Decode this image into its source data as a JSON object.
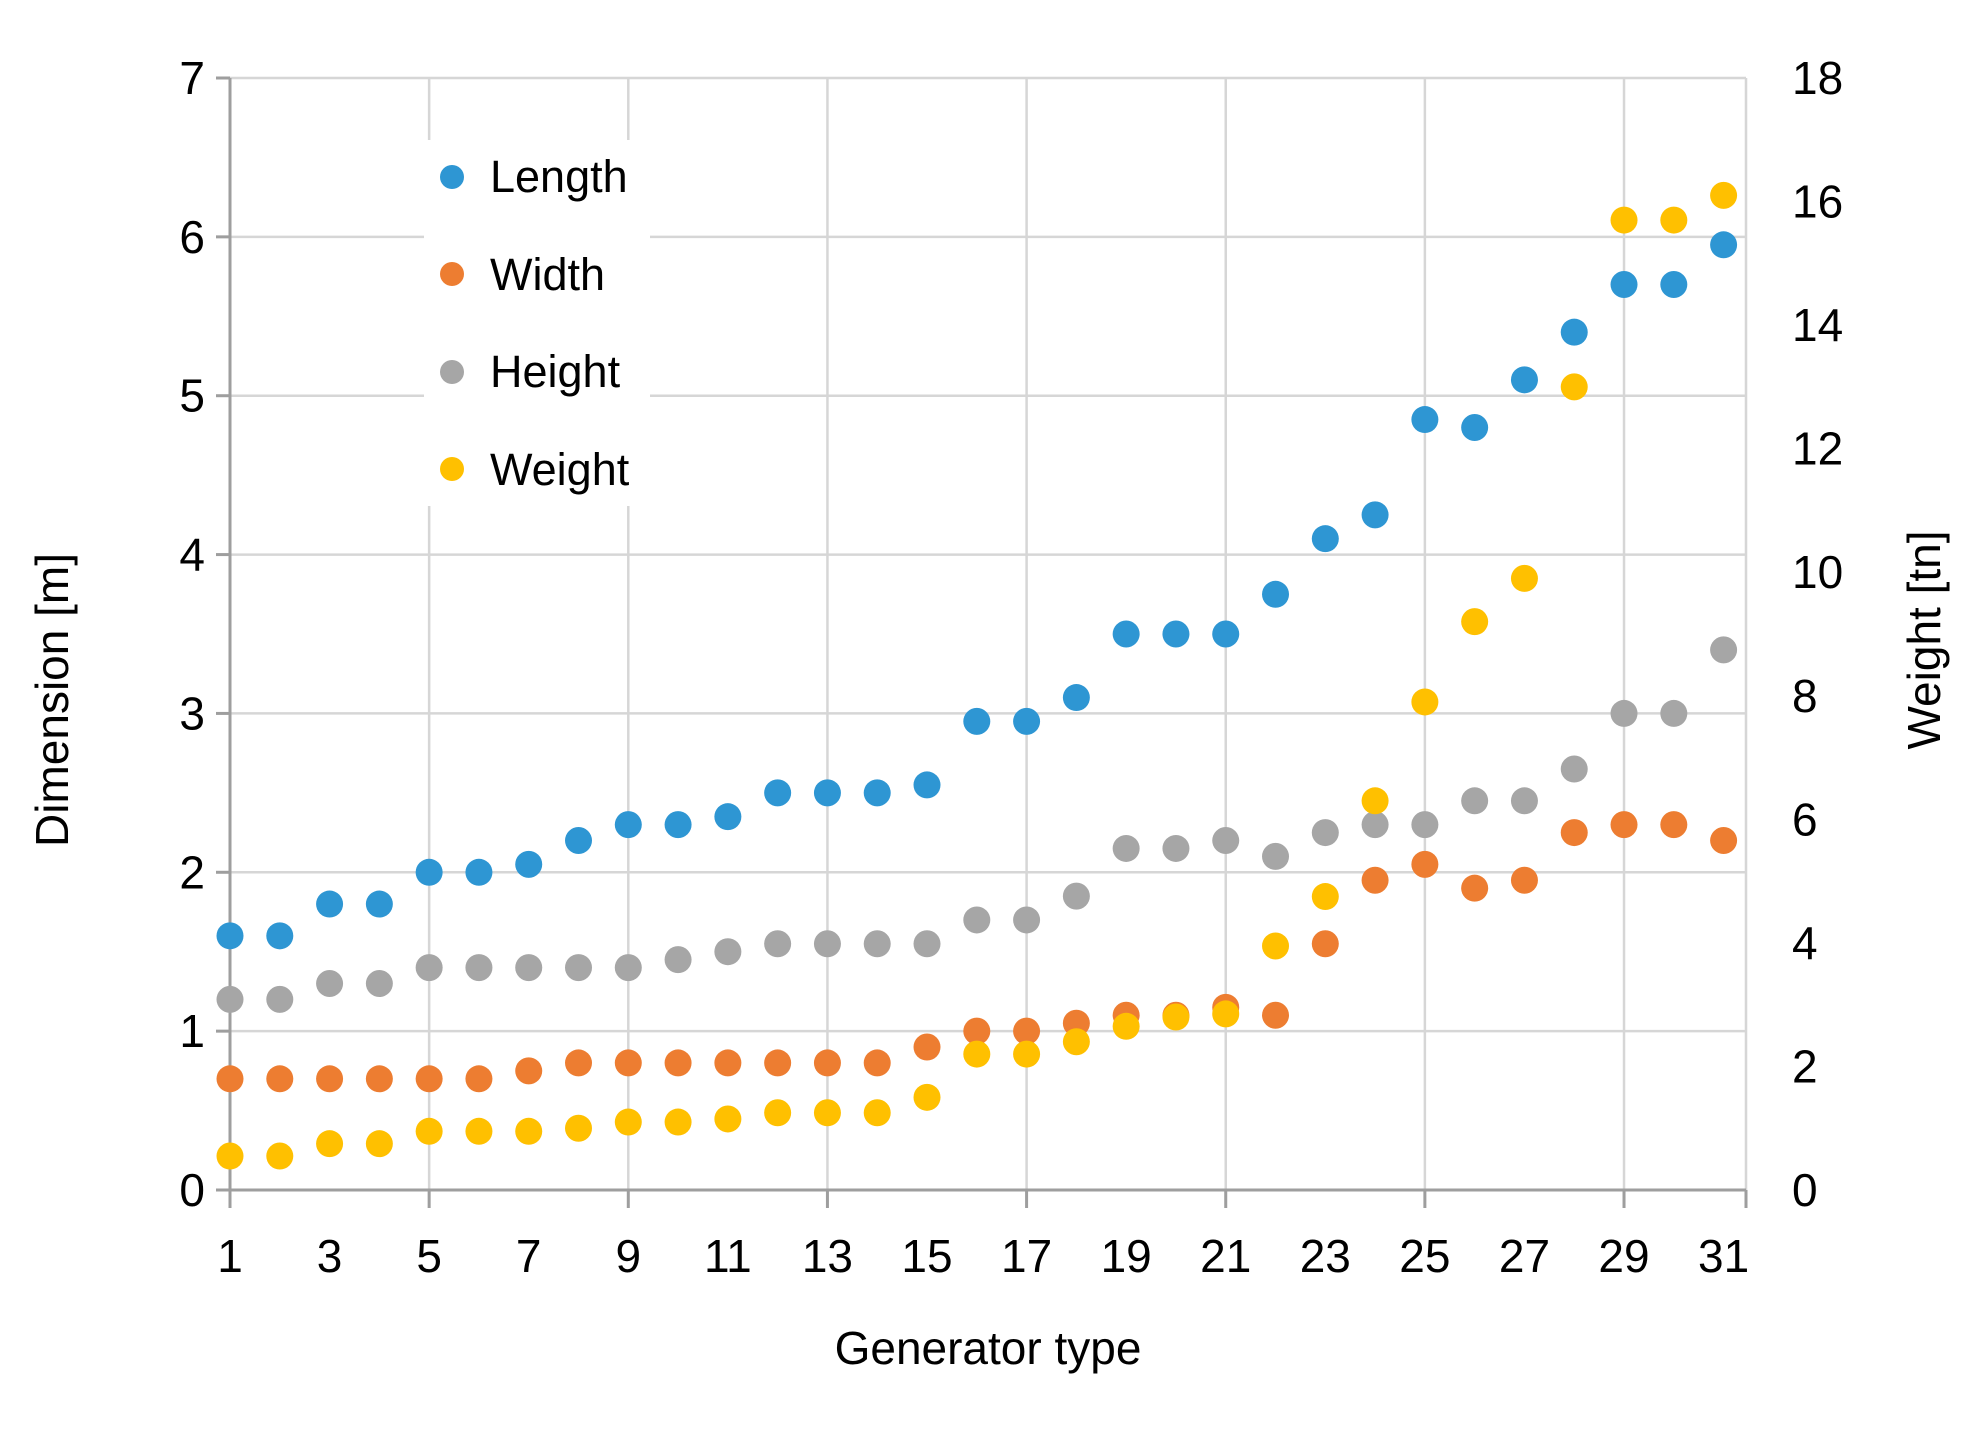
{
  "chart_data": {
    "type": "scatter",
    "title": "",
    "xlabel": "Generator type",
    "ylabel_left": "Dimension [m]",
    "ylabel_right": "Weight [tn]",
    "grid": true,
    "legend_position": "inside-top-left",
    "x": [
      1,
      2,
      3,
      4,
      5,
      6,
      7,
      8,
      9,
      10,
      11,
      12,
      13,
      14,
      15,
      16,
      17,
      18,
      19,
      20,
      21,
      22,
      23,
      24,
      25,
      26,
      27,
      28,
      29,
      30,
      31
    ],
    "x_axis": {
      "tick_labels": [
        1,
        3,
        5,
        7,
        9,
        11,
        13,
        15,
        17,
        19,
        21,
        23,
        25,
        27,
        29,
        31
      ],
      "gridline_step": 4,
      "min": 1,
      "max": 31.45
    },
    "y_axis_left": {
      "min": 0,
      "max": 7,
      "ticks": [
        0,
        1,
        2,
        3,
        4,
        5,
        6,
        7
      ]
    },
    "y_axis_right": {
      "min": 0,
      "max": 18,
      "ticks": [
        0,
        2,
        4,
        6,
        8,
        10,
        12,
        14,
        16,
        18
      ]
    },
    "series": [
      {
        "name": "Length",
        "axis": "left",
        "color": "#2E96D3",
        "values": [
          1.6,
          1.6,
          1.8,
          1.8,
          2.0,
          2.0,
          2.05,
          2.2,
          2.3,
          2.3,
          2.35,
          2.5,
          2.5,
          2.5,
          2.55,
          2.95,
          2.95,
          3.1,
          3.5,
          3.5,
          3.5,
          3.75,
          4.1,
          4.25,
          4.85,
          4.8,
          5.1,
          5.4,
          5.7,
          5.7,
          5.95
        ]
      },
      {
        "name": "Width",
        "axis": "left",
        "color": "#ED7D31",
        "values": [
          0.7,
          0.7,
          0.7,
          0.7,
          0.7,
          0.7,
          0.75,
          0.8,
          0.8,
          0.8,
          0.8,
          0.8,
          0.8,
          0.8,
          0.9,
          1.0,
          1.0,
          1.05,
          1.1,
          1.1,
          1.15,
          1.1,
          1.55,
          1.95,
          2.05,
          1.9,
          1.95,
          2.25,
          2.3,
          2.3,
          2.2
        ]
      },
      {
        "name": "Height",
        "axis": "left",
        "color": "#A6A6A6",
        "values": [
          1.2,
          1.2,
          1.3,
          1.3,
          1.4,
          1.4,
          1.4,
          1.4,
          1.4,
          1.45,
          1.5,
          1.55,
          1.55,
          1.55,
          1.55,
          1.7,
          1.7,
          1.85,
          2.15,
          2.15,
          2.2,
          2.1,
          2.25,
          2.3,
          2.3,
          2.45,
          2.45,
          2.65,
          3.0,
          3.0,
          3.4
        ]
      },
      {
        "name": "Weight",
        "axis": "right",
        "color": "#FFC000",
        "values": [
          0.55,
          0.55,
          0.75,
          0.75,
          0.95,
          0.95,
          0.95,
          1.0,
          1.1,
          1.1,
          1.15,
          1.25,
          1.25,
          1.25,
          1.5,
          2.2,
          2.2,
          2.4,
          2.65,
          2.8,
          2.85,
          3.95,
          4.75,
          6.3,
          7.9,
          9.2,
          9.9,
          13.0,
          15.7,
          15.7,
          16.1
        ]
      }
    ],
    "style": {
      "gridline_color": "#D6D6D6",
      "axis_line_color": "#9E9E9E",
      "tick_label_color": "#000000",
      "dot_radius": 13.5
    }
  }
}
